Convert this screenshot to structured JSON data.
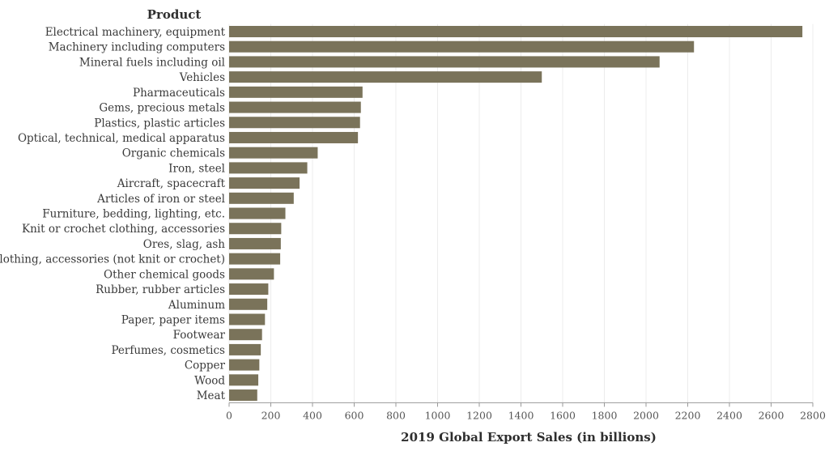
{
  "chart_data": {
    "type": "bar",
    "orientation": "horizontal",
    "category_title": "Product",
    "xlabel": "2019 Global Export Sales (in billions)",
    "xlim": [
      0,
      2800
    ],
    "xticks": [
      "0",
      "200",
      "400",
      "600",
      "800",
      "1000",
      "1200",
      "1400",
      "1600",
      "1800",
      "2000",
      "2200",
      "2400",
      "2600",
      "2800"
    ],
    "grid": true,
    "bar_color": "#7a735a",
    "categories": [
      "Electrical machinery, equipment",
      "Machinery including computers",
      "Mineral fuels including oil",
      "Vehicles",
      "Pharmaceuticals",
      "Gems, precious metals",
      "Plastics, plastic articles",
      "Optical, technical, medical apparatus",
      "Organic chemicals",
      "Iron, steel",
      "Aircraft, spacecraft",
      "Articles of iron or steel",
      "Furniture, bedding, lighting, etc.",
      "Knit or crochet clothing, accessories",
      "Ores, slag, ash",
      "Clothing, accessories (not knit or crochet)",
      "Other chemical goods",
      "Rubber, rubber articles",
      "Aluminum",
      "Paper, paper items",
      "Footwear",
      "Perfumes, cosmetics",
      "Copper",
      "Wood",
      "Meat"
    ],
    "values": [
      2750,
      2230,
      2065,
      1500,
      640,
      632,
      628,
      618,
      425,
      375,
      338,
      310,
      270,
      250,
      248,
      245,
      215,
      188,
      183,
      172,
      158,
      152,
      145,
      140,
      135
    ]
  }
}
